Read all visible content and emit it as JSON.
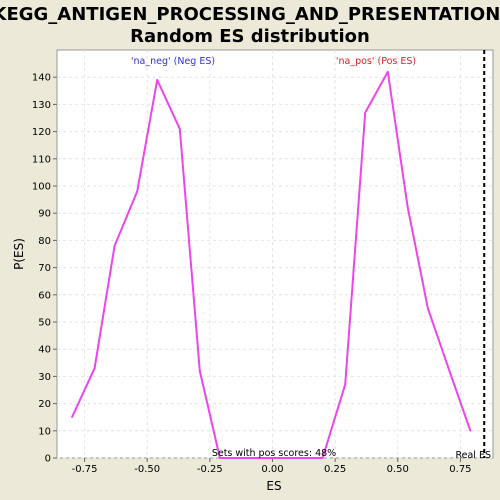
{
  "chart_data": {
    "type": "line",
    "title": "KEGG_ANTIGEN_PROCESSING_AND_PRESENTATION:",
    "subtitle": "Random ES distribution",
    "xlabel": "ES",
    "ylabel": "P(ES)",
    "xlim": [
      -0.86,
      0.88
    ],
    "ylim": [
      0,
      150
    ],
    "x_ticks": [
      -0.75,
      -0.5,
      -0.25,
      0.0,
      0.25,
      0.5,
      0.75
    ],
    "x_tick_labels": [
      "-0.75",
      "-0.50",
      "-0.25",
      "0.00",
      "0.25",
      "0.50",
      "0.75"
    ],
    "y_ticks": [
      0,
      10,
      20,
      30,
      40,
      50,
      60,
      70,
      80,
      90,
      100,
      110,
      120,
      130,
      140
    ],
    "y_tick_labels": [
      "0",
      "10",
      "20",
      "30",
      "40",
      "50",
      "60",
      "70",
      "80",
      "90",
      "100",
      "110",
      "120",
      "130",
      "140"
    ],
    "grid": true,
    "line_color": "#ee44ee",
    "series": [
      {
        "x": [
          -0.8,
          -0.71,
          -0.63,
          -0.54,
          -0.46,
          -0.37,
          -0.29,
          -0.21,
          0.2,
          0.29,
          0.37,
          0.46,
          0.54,
          0.62,
          0.71,
          0.79
        ],
        "y": [
          15,
          33,
          78,
          98,
          139,
          121,
          32,
          0,
          0,
          27,
          127,
          142,
          92,
          55,
          31,
          10
        ]
      }
    ],
    "annotations": {
      "neg_label": "'na_neg' (Neg ES)",
      "neg_color": "#3333cc",
      "pos_label": "'na_pos' (Pos ES)",
      "pos_color": "#dd2222",
      "pos_scores_text": "Sets with pos scores: 48%",
      "real_es_label": "Real ES",
      "real_es_value": 0.845
    }
  }
}
